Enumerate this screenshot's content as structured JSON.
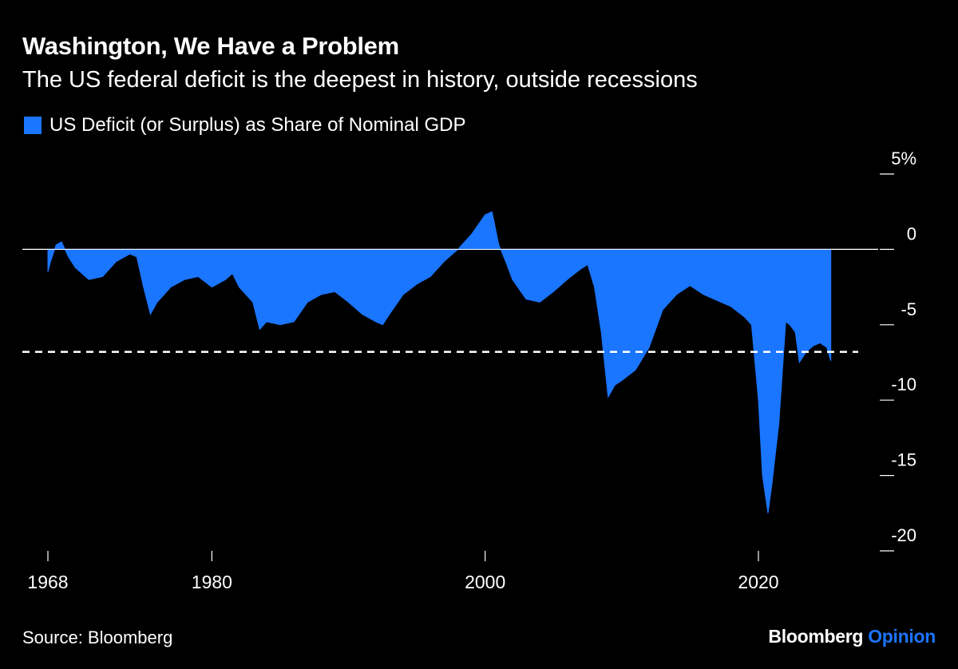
{
  "header": {
    "title": "Washington, We Have a Problem",
    "subtitle": "The US federal deficit is the deepest in history, outside recessions"
  },
  "legend": {
    "label": "US Deficit (or Surplus) as Share of Nominal GDP",
    "color": "#1a75ff"
  },
  "footer": {
    "source": "Source: Bloomberg",
    "brand_primary": "Bloomberg",
    "brand_secondary": "Opinion",
    "brand_secondary_color": "#1a75ff"
  },
  "chart_data": {
    "type": "area",
    "title": "Washington, We Have a Problem",
    "subtitle": "The US federal deficit is the deepest in history, outside recessions",
    "series": [
      {
        "name": "US Deficit (or Surplus) as Share of Nominal GDP",
        "color": "#1a75ff",
        "x": [
          1968,
          1968.2,
          1968.6,
          1969,
          1969.5,
          1970,
          1971,
          1972,
          1973,
          1974,
          1974.5,
          1975,
          1975.5,
          1976,
          1977,
          1978,
          1979,
          1980,
          1981,
          1981.5,
          1982,
          1983,
          1983.5,
          1984,
          1985,
          1986,
          1987,
          1988,
          1989,
          1990,
          1991,
          1992,
          1992.5,
          1993,
          1994,
          1995,
          1996,
          1997,
          1998,
          1998.5,
          1999,
          2000,
          2000.5,
          2001,
          2001.5,
          2002,
          2003,
          2004,
          2005,
          2006,
          2007,
          2007.5,
          2008,
          2008.5,
          2009,
          2009.5,
          2010,
          2011,
          2012,
          2013,
          2014,
          2015,
          2016,
          2017,
          2018,
          2019,
          2019.5,
          2020,
          2020.3,
          2020.7,
          2021,
          2021.5,
          2022,
          2022.3,
          2022.7,
          2023,
          2023.5,
          2024,
          2024.5,
          2025,
          2025.3
        ],
        "values": [
          -1.5,
          -0.8,
          0.3,
          0.5,
          -0.5,
          -1.2,
          -2.0,
          -1.8,
          -0.8,
          -0.3,
          -0.5,
          -2.5,
          -4.3,
          -3.5,
          -2.5,
          -2.0,
          -1.8,
          -2.5,
          -2.0,
          -1.6,
          -2.5,
          -3.5,
          -5.3,
          -4.8,
          -5.0,
          -4.8,
          -3.5,
          -3.0,
          -2.8,
          -3.5,
          -4.3,
          -4.8,
          -5.0,
          -4.3,
          -3.0,
          -2.3,
          -1.8,
          -0.8,
          0.0,
          0.5,
          1.0,
          2.3,
          2.5,
          0.3,
          -0.8,
          -2.0,
          -3.3,
          -3.5,
          -2.8,
          -2.0,
          -1.3,
          -1.0,
          -2.5,
          -5.5,
          -9.8,
          -9.0,
          -8.7,
          -8.0,
          -6.5,
          -4.0,
          -3.0,
          -2.4,
          -3.0,
          -3.4,
          -3.8,
          -4.5,
          -5.0,
          -10.0,
          -15.0,
          -17.5,
          -15.5,
          -11.5,
          -4.8,
          -5.0,
          -5.5,
          -7.5,
          -6.8,
          -6.4,
          -6.2,
          -6.5,
          -7.4
        ]
      }
    ],
    "reference_line": {
      "value": -6.8,
      "style": "dashed"
    },
    "ylim": [
      -20,
      5
    ],
    "yticks": [
      5,
      0,
      -5,
      -10,
      -15,
      -20
    ],
    "ytick_labels": [
      "5%",
      "0",
      "-5",
      "-10",
      "-15",
      "-20"
    ],
    "xlim": [
      1967,
      2028
    ],
    "xticks": [
      1968,
      1980,
      2000,
      2020
    ],
    "xtick_labels": [
      "1968",
      "1980",
      "2000",
      "2020"
    ],
    "xlabel": "",
    "ylabel": ""
  }
}
